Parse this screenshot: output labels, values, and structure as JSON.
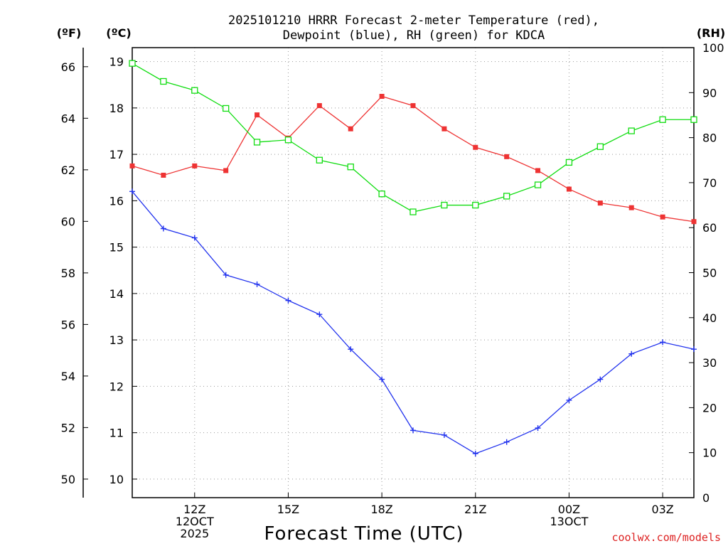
{
  "title_line1": "2025101210 HRRR Forecast 2-meter Temperature (red),",
  "title_line2": "Dewpoint (blue), RH (green) for KDCA",
  "unit_f": "(ºF)",
  "unit_c": "(ºC)",
  "unit_rh": "(RH)",
  "xlabel": "Forecast Time (UTC)",
  "credit": "coolwx.com/models",
  "colors": {
    "temp": "#ee3333",
    "dewp": "#2233ee",
    "rh": "#11dd11",
    "credit": "#dd2222"
  },
  "chart_data": {
    "type": "line",
    "x_hours": [
      10,
      11,
      12,
      13,
      14,
      15,
      16,
      17,
      18,
      19,
      20,
      21,
      22,
      23,
      24,
      25,
      26,
      27,
      28
    ],
    "x_range_hours": [
      10,
      28
    ],
    "x_ticks": [
      {
        "hour": 12,
        "lines": [
          "12Z",
          "12OCT",
          "2025"
        ]
      },
      {
        "hour": 15,
        "lines": [
          "15Z"
        ]
      },
      {
        "hour": 18,
        "lines": [
          "18Z"
        ]
      },
      {
        "hour": 21,
        "lines": [
          "21Z"
        ]
      },
      {
        "hour": 24,
        "lines": [
          "00Z",
          "13OCT"
        ]
      },
      {
        "hour": 27,
        "lines": [
          "03Z"
        ]
      }
    ],
    "y_celsius": {
      "range": [
        9.6,
        19.3
      ],
      "ticks": [
        10,
        11,
        12,
        13,
        14,
        15,
        16,
        17,
        18,
        19
      ]
    },
    "y_fahrenheit": {
      "ticks": [
        50,
        52,
        54,
        56,
        58,
        60,
        62,
        64,
        66
      ]
    },
    "y_rh": {
      "range": [
        0,
        100
      ],
      "ticks": [
        0,
        10,
        20,
        30,
        40,
        50,
        60,
        70,
        80,
        90,
        100
      ]
    },
    "grid": true,
    "series": [
      {
        "name": "Temperature (°C)",
        "axis": "celsius",
        "marker": "filled-square",
        "values": [
          16.75,
          16.55,
          16.75,
          16.65,
          17.85,
          17.35,
          18.05,
          17.55,
          18.25,
          18.05,
          17.55,
          17.15,
          16.95,
          16.65,
          16.25,
          15.95,
          15.85,
          15.65,
          15.55
        ]
      },
      {
        "name": "Dewpoint (°C)",
        "axis": "celsius",
        "marker": "plus",
        "values": [
          16.2,
          15.4,
          15.2,
          14.4,
          14.2,
          13.85,
          13.55,
          12.8,
          12.15,
          11.05,
          10.95,
          10.55,
          10.8,
          11.1,
          11.7,
          12.15,
          12.7,
          12.95,
          12.8
        ]
      },
      {
        "name": "RH (%)",
        "axis": "rh",
        "marker": "open-square",
        "values": [
          96.5,
          92.5,
          90.5,
          86.5,
          79,
          79.5,
          75,
          73.5,
          67.5,
          63.5,
          65,
          65,
          67,
          69.5,
          74.5,
          78,
          81.5,
          84,
          84
        ]
      }
    ]
  }
}
